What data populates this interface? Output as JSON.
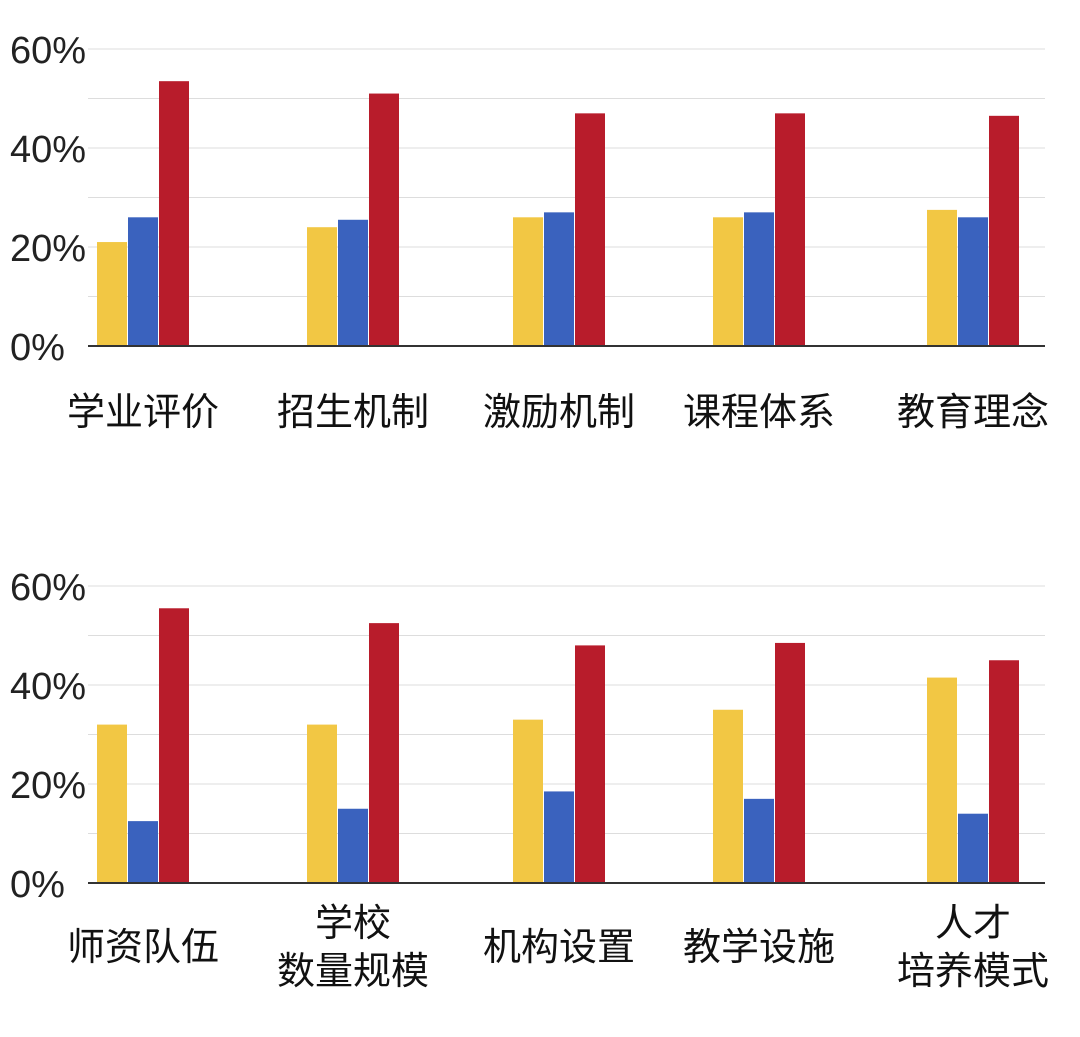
{
  "colors": {
    "series1": "#F2C744",
    "series2": "#3A62BE",
    "series3": "#B81C2B",
    "grid": "#DDDDDD",
    "axis": "#333333"
  },
  "chart_data": [
    {
      "type": "bar",
      "ylim": [
        0,
        60
      ],
      "yticks": [
        "0%",
        "20%",
        "40%",
        "60%"
      ],
      "grid": true,
      "categories": [
        [
          "学业评价"
        ],
        [
          "招生机制"
        ],
        [
          "激励机制"
        ],
        [
          "课程体系"
        ],
        [
          "教育理念"
        ]
      ],
      "series": [
        {
          "values": [
            21,
            24,
            26,
            26,
            27.5
          ]
        },
        {
          "values": [
            26,
            25.5,
            27,
            27,
            26
          ]
        },
        {
          "values": [
            53.5,
            51,
            47,
            47,
            46.5
          ]
        }
      ]
    },
    {
      "type": "bar",
      "ylim": [
        0,
        60
      ],
      "yticks": [
        "0%",
        "20%",
        "40%",
        "60%"
      ],
      "grid": true,
      "categories": [
        [
          "师资队伍"
        ],
        [
          "学校",
          "数量规模"
        ],
        [
          "机构设置"
        ],
        [
          "教学设施"
        ],
        [
          "人才",
          "培养模式"
        ]
      ],
      "series": [
        {
          "values": [
            32,
            32,
            33,
            35,
            41.5
          ]
        },
        {
          "values": [
            12.5,
            15,
            18.5,
            17,
            14
          ]
        },
        {
          "values": [
            55.5,
            52.5,
            48,
            48.5,
            45
          ]
        }
      ]
    }
  ]
}
